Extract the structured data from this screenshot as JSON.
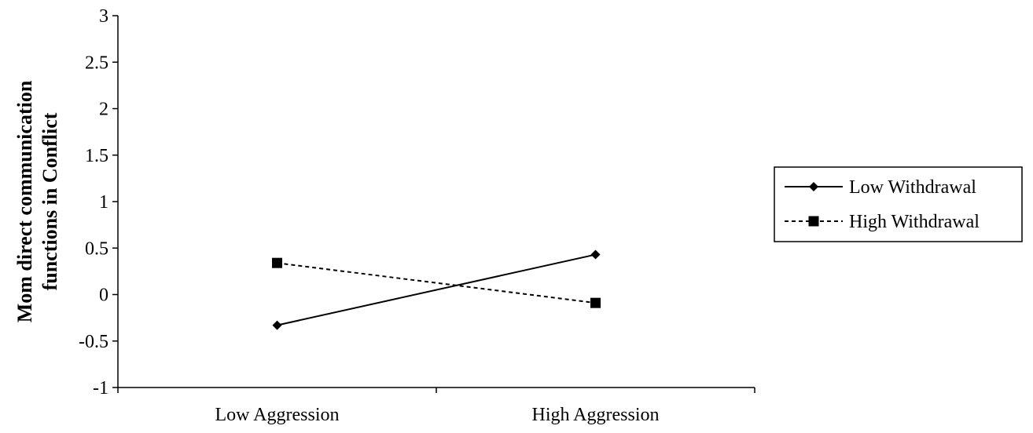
{
  "chart_data": {
    "type": "line",
    "title": "",
    "xlabel": "",
    "ylabel_lines": [
      "Mom direct communication",
      "functions in Conflict"
    ],
    "categories": [
      "Low Aggression",
      "High Aggression"
    ],
    "ylim": [
      -1,
      3
    ],
    "yticks": [
      3,
      2.5,
      2,
      1.5,
      1,
      0.5,
      0,
      -0.5,
      -1
    ],
    "ytick_labels": [
      "3",
      "2.5",
      "2",
      "1.5",
      "1",
      "0.5",
      "0",
      "-0.5",
      "-1"
    ],
    "grid": false,
    "legend_position": "right",
    "series": [
      {
        "name": "Low Withdrawal",
        "values": [
          -0.33,
          0.43
        ],
        "marker": "diamond",
        "line_style": "solid",
        "color": "#000000"
      },
      {
        "name": "High Withdrawal",
        "values": [
          0.34,
          -0.09
        ],
        "marker": "square",
        "line_style": "dashed",
        "color": "#000000"
      }
    ]
  }
}
